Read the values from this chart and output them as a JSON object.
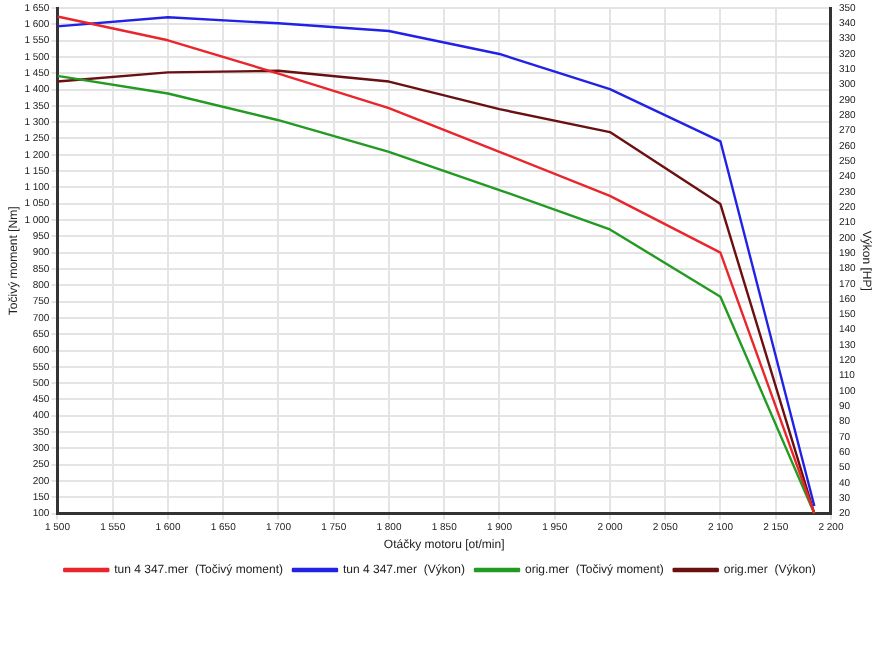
{
  "chart_data": {
    "type": "line",
    "xlabel": "Otáčky motoru [ot/min]",
    "ylabel": "Točivý moment [Nm]",
    "y2label": "Výkon [HP]",
    "x": [
      1500,
      1600,
      1700,
      1800,
      1900,
      2000,
      2100,
      2185
    ],
    "series": [
      {
        "name": "tun 4 347.mer  (Točivý moment)",
        "color": "#e8262b",
        "values": [
          1624,
          1551,
          1449,
          1343,
          1209,
          1074,
          900,
          100
        ]
      },
      {
        "name": "tun 4 347.mer  (Výkon)",
        "color": "#2222e6",
        "values": [
          338,
          344,
          340,
          335,
          320,
          297,
          263,
          25
        ],
        "axis": "y2"
      },
      {
        "name": "orig.mer  (Točivý moment)",
        "color": "#239b23",
        "values": [
          1442,
          1388,
          1306,
          1209,
          1092,
          971,
          765,
          100
        ]
      },
      {
        "name": "orig.mer  (Výkon)",
        "color": "#6b1010",
        "values": [
          302,
          308,
          309,
          302,
          284,
          269,
          222,
          20
        ],
        "axis": "y2"
      }
    ],
    "xlim": [
      1500,
      2200
    ],
    "xticks": [
      {
        "value": 1500,
        "label": "1 500"
      },
      {
        "value": 1550,
        "label": "1 550"
      },
      {
        "value": 1600,
        "label": "1 600"
      },
      {
        "value": 1650,
        "label": "1 650"
      },
      {
        "value": 1700,
        "label": "1 700"
      },
      {
        "value": 1750,
        "label": "1 750"
      },
      {
        "value": 1800,
        "label": "1 800"
      },
      {
        "value": 1850,
        "label": "1 850"
      },
      {
        "value": 1900,
        "label": "1 900"
      },
      {
        "value": 1950,
        "label": "1 950"
      },
      {
        "value": 2000,
        "label": "2 000"
      },
      {
        "value": 2050,
        "label": "2 050"
      },
      {
        "value": 2100,
        "label": "2 100"
      },
      {
        "value": 2150,
        "label": "2 150"
      },
      {
        "value": 2200,
        "label": "2 200"
      }
    ],
    "ylim": [
      100,
      1650
    ],
    "yticks": [
      100,
      150,
      200,
      250,
      300,
      350,
      400,
      450,
      500,
      550,
      600,
      650,
      700,
      750,
      800,
      850,
      900,
      950,
      {
        "value": 1000,
        "label": "1 000"
      },
      {
        "value": 1050,
        "label": "1 050"
      },
      {
        "value": 1100,
        "label": "1 100"
      },
      {
        "value": 1150,
        "label": "1 150"
      },
      {
        "value": 1200,
        "label": "1 200"
      },
      {
        "value": 1250,
        "label": "1 250"
      },
      {
        "value": 1300,
        "label": "1 300"
      },
      {
        "value": 1350,
        "label": "1 350"
      },
      {
        "value": 1400,
        "label": "1 400"
      },
      {
        "value": 1450,
        "label": "1 450"
      },
      {
        "value": 1500,
        "label": "1 500"
      },
      {
        "value": 1550,
        "label": "1 550"
      },
      {
        "value": 1600,
        "label": "1 600"
      },
      {
        "value": 1650,
        "label": "1 650"
      }
    ],
    "y2lim": [
      20,
      350
    ],
    "y2ticks": [
      20,
      30,
      40,
      50,
      60,
      70,
      80,
      90,
      100,
      110,
      120,
      130,
      140,
      150,
      160,
      170,
      180,
      190,
      200,
      210,
      220,
      230,
      240,
      250,
      260,
      270,
      280,
      290,
      300,
      310,
      320,
      330,
      340,
      350
    ],
    "grid": true,
    "legend": "bottom",
    "marker": "none",
    "line_style": "solid"
  }
}
